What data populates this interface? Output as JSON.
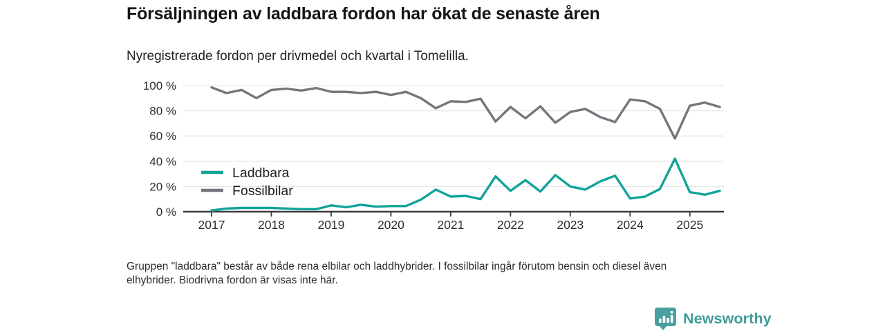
{
  "footnote": {
    "line1": "Gruppen \"laddbara\" består av både rena elbilar och laddhybrider. I fossilbilar ingår förutom bensin och diesel även",
    "line2": "elhybrider. Biodrivna fordon är visas inte här."
  },
  "logo": {
    "text": "Newsworthy",
    "brand_color": "#3f9a9a"
  },
  "chart_data": {
    "type": "line",
    "title": "Försäljningen av laddbara fordon har ökat de senaste åren",
    "subtitle": "Nyregistrerade fordon per drivmedel och kvartal i Tomelilla.",
    "xlabel": "",
    "ylabel": "",
    "ylim": [
      0,
      100
    ],
    "yticks": [
      0,
      20,
      40,
      60,
      80,
      100
    ],
    "ytick_suffix": " %",
    "grid": true,
    "legend_position": "inside-left",
    "x_tick_labels": [
      "2017",
      "2018",
      "2019",
      "2020",
      "2021",
      "2022",
      "2023",
      "2024",
      "2025"
    ],
    "quarters": [
      "2017Q1",
      "2017Q2",
      "2017Q3",
      "2017Q4",
      "2018Q1",
      "2018Q2",
      "2018Q3",
      "2018Q4",
      "2019Q1",
      "2019Q2",
      "2019Q3",
      "2019Q4",
      "2020Q1",
      "2020Q2",
      "2020Q3",
      "2020Q4",
      "2021Q1",
      "2021Q2",
      "2021Q3",
      "2021Q4",
      "2022Q1",
      "2022Q2",
      "2022Q3",
      "2022Q4",
      "2023Q1",
      "2023Q2",
      "2023Q3",
      "2023Q4",
      "2024Q1",
      "2024Q2",
      "2024Q3",
      "2024Q4",
      "2025Q1",
      "2025Q2",
      "2025Q3"
    ],
    "series": [
      {
        "name": "Laddbara",
        "color": "#11A39A",
        "values": [
          1,
          2.5,
          3,
          3,
          3,
          2.5,
          2,
          2,
          5,
          3.5,
          5.5,
          4,
          4.5,
          4.5,
          9.5,
          17.5,
          12,
          12.5,
          10,
          28,
          16.5,
          25,
          16,
          29,
          20,
          17.5,
          24,
          28.5,
          10.5,
          12,
          18,
          42,
          15.5,
          13.5,
          16.5
        ]
      },
      {
        "name": "Fossilbilar",
        "color": "#76757D",
        "values": [
          98.5,
          94,
          96.5,
          90,
          96.5,
          97.5,
          96,
          98,
          95,
          95,
          94,
          95,
          92.5,
          95,
          90,
          82,
          87.5,
          87,
          89.5,
          71.5,
          83,
          74,
          83.5,
          70.5,
          79,
          81.5,
          75,
          71,
          89,
          87.5,
          81.5,
          58,
          84,
          86.5,
          83
        ]
      }
    ]
  }
}
